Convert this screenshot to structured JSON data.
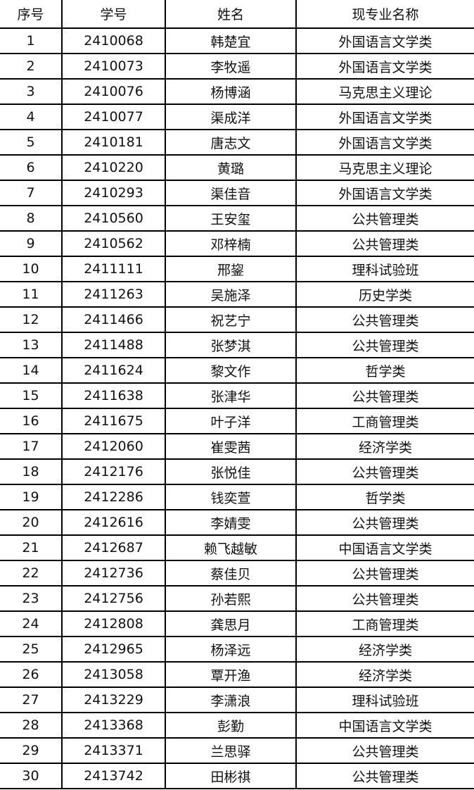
{
  "table": {
    "headers": [
      "序号",
      "学号",
      "姓名",
      "现专业名称"
    ],
    "rows": [
      [
        "1",
        "2410068",
        "韩楚宜",
        "外国语言文学类"
      ],
      [
        "2",
        "2410073",
        "李牧遥",
        "外国语言文学类"
      ],
      [
        "3",
        "2410076",
        "杨博涵",
        "马克思主义理论"
      ],
      [
        "4",
        "2410077",
        "渠成洋",
        "外国语言文学类"
      ],
      [
        "5",
        "2410181",
        "唐志文",
        "外国语言文学类"
      ],
      [
        "6",
        "2410220",
        "黄璐",
        "马克思主义理论"
      ],
      [
        "7",
        "2410293",
        "渠佳音",
        "外国语言文学类"
      ],
      [
        "8",
        "2410560",
        "王安玺",
        "公共管理类"
      ],
      [
        "9",
        "2410562",
        "邓梓楠",
        "公共管理类"
      ],
      [
        "10",
        "2411111",
        "邢鋆",
        "理科试验班"
      ],
      [
        "11",
        "2411263",
        "吴施泽",
        "历史学类"
      ],
      [
        "12",
        "2411466",
        "祝艺宁",
        "公共管理类"
      ],
      [
        "13",
        "2411488",
        "张梦淇",
        "公共管理类"
      ],
      [
        "14",
        "2411624",
        "黎文作",
        "哲学类"
      ],
      [
        "15",
        "2411638",
        "张津华",
        "公共管理类"
      ],
      [
        "16",
        "2411675",
        "叶子洋",
        "工商管理类"
      ],
      [
        "17",
        "2412060",
        "崔雯茜",
        "经济学类"
      ],
      [
        "18",
        "2412176",
        "张悦佳",
        "公共管理类"
      ],
      [
        "19",
        "2412286",
        "钱奕萱",
        "哲学类"
      ],
      [
        "20",
        "2412616",
        "李婧雯",
        "公共管理类"
      ],
      [
        "21",
        "2412687",
        "赖飞越敏",
        "中国语言文学类"
      ],
      [
        "22",
        "2412736",
        "蔡佳贝",
        "公共管理类"
      ],
      [
        "23",
        "2412756",
        "孙若熙",
        "公共管理类"
      ],
      [
        "24",
        "2412808",
        "龚思月",
        "工商管理类"
      ],
      [
        "25",
        "2412965",
        "杨泽远",
        "经济学类"
      ],
      [
        "26",
        "2413058",
        "覃开渔",
        "经济学类"
      ],
      [
        "27",
        "2413229",
        "李潇浪",
        "理科试验班"
      ],
      [
        "28",
        "2413368",
        "彭勤",
        "中国语言文学类"
      ],
      [
        "29",
        "2413371",
        "兰思驿",
        "公共管理类"
      ],
      [
        "30",
        "2413742",
        "田彬祺",
        "公共管理类"
      ]
    ]
  }
}
